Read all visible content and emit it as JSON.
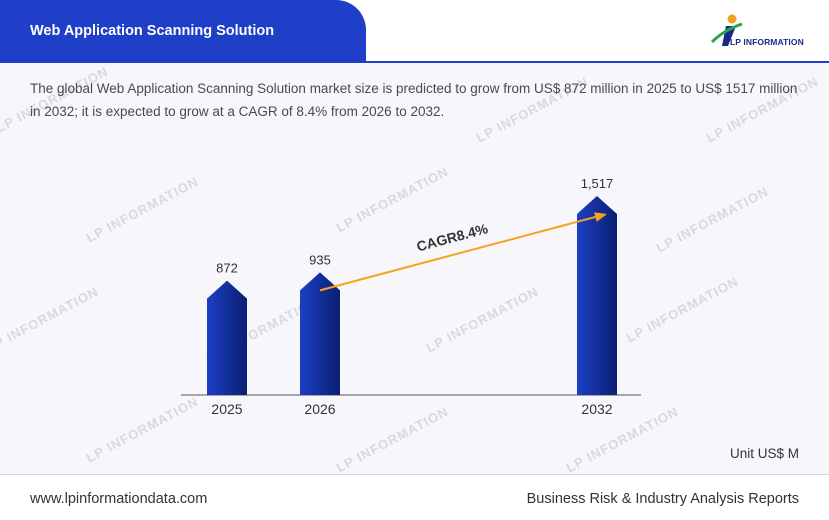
{
  "header": {
    "title": "Web Application Scanning Solution",
    "logo_text": "LP INFORMATION"
  },
  "description": "The global Web Application Scanning Solution market size is predicted to grow from US$ 872 million in 2025 to US$ 1517 million in 2032; it is expected to grow at a CAGR of 8.4% from 2026 to 2032.",
  "watermark_text": "LP INFORMATION",
  "chart_data": {
    "type": "bar",
    "title": "",
    "xlabel": "",
    "ylabel": "",
    "categories": [
      "2025",
      "2026",
      "2032"
    ],
    "values": [
      872,
      935,
      1517
    ],
    "value_labels": [
      "872",
      "935",
      "1,517"
    ],
    "ylim": [
      0,
      1517
    ],
    "grid": false,
    "bar_color": "#1b3fc4",
    "bar_dark_color": "#0b1f73",
    "annotation": {
      "text": "CAGR8.4%",
      "from": "2026",
      "to": "2032",
      "arrow_color": "#f5a21c"
    }
  },
  "unit_label": "Unit US$ M",
  "footer": {
    "website": "www.lpinformationdata.com",
    "tagline": "Business Risk & Industry Analysis Reports"
  }
}
